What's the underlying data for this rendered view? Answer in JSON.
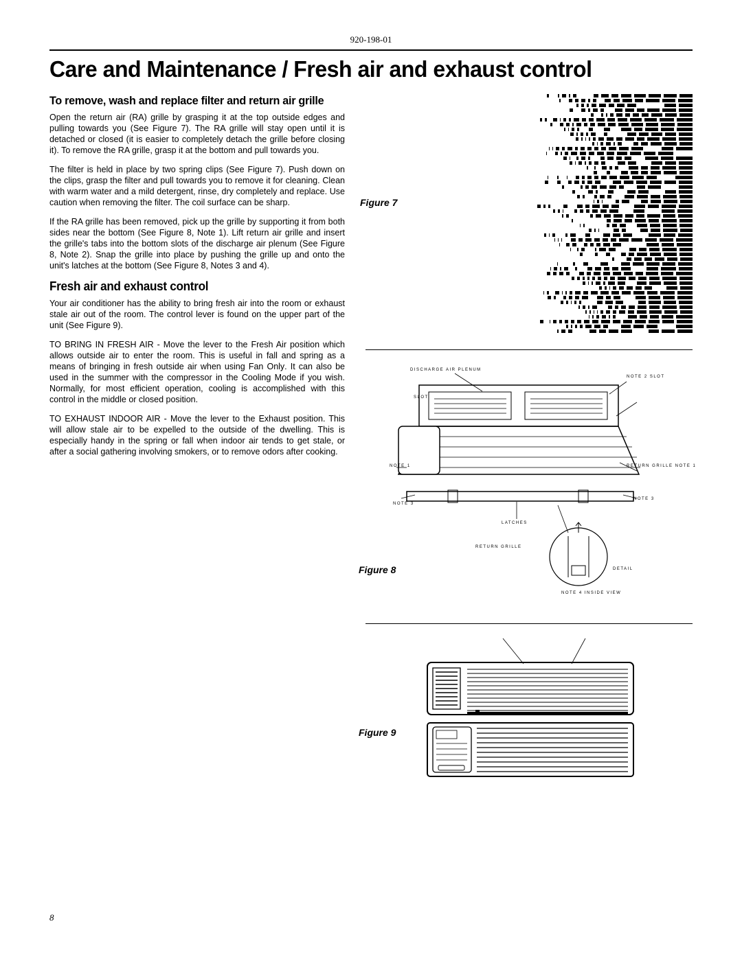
{
  "doc_number": "920-198-01",
  "main_title": "Care and Maintenance / Fresh air and exhaust control",
  "section1_title": "To remove, wash and replace filter and return air grille",
  "para1": "Open the return air (RA) grille by grasping it at the top outside edges and pulling towards you (See Figure 7). The RA grille will stay open until it is detached or closed (it is easier to completely detach the grille before closing it). To remove the RA grille, grasp it at the bottom and pull towards you.",
  "para2": "The filter is held in place by two spring clips (See Figure 7). Push down on the clips, grasp the filter and pull towards you to remove it for cleaning. Clean with warm water and a mild detergent, rinse, dry completely and replace. Use caution when removing the filter. The coil surface can be sharp.",
  "para3": "If the RA grille has been removed, pick up the grille by supporting it from both sides near the bottom (See Figure 8, Note 1). Lift return air grille and insert the grille's tabs into the bottom slots of the discharge air plenum (See Figure 8, Note 2). Snap the grille into place by pushing the grille up and onto the unit's latches at the bottom (See Figure 8, Notes 3 and 4).",
  "section2_title": "Fresh air and exhaust control",
  "para4": "Your air conditioner has the ability to bring fresh air into the room or exhaust stale air out of the room. The control lever is found on the upper part of the unit (See Figure 9).",
  "para5a": "TO BRING IN FRESH AIR - Move the lever to the ",
  "para5b": "Fresh Air",
  "para5c": " position which allows outside air to enter the room. This is useful in fall and spring as a means of bringing in fresh outside air when using ",
  "para5d": "Fan Only",
  "para5e": ". It can also be used in the summer with the compressor in the Cooling Mode if you wish. Normally, for most efficient operation, cooling is accomplished with this control in the middle or closed position.",
  "para6a": "TO EXHAUST INDOOR AIR - Move the lever to the ",
  "para6b": "Exhaust",
  "para6c": " position. This will allow stale air to be expelled to the outside of the dwelling. This is especially handy in the spring or fall when indoor air tends to get stale, or after a social gathering involving smokers, or to remove odors after cooking.",
  "fig7_label": "Figure 7",
  "fig8_label": "Figure 8",
  "fig9_label": "Figure 9",
  "page_num": "8",
  "fig8_labels": {
    "l1": "DISCHARGE AIR PLENUM",
    "l2": "NOTE 2\nSLOT",
    "l3": "SLOT",
    "l4": "NOTE 1",
    "l5": "RETURN GRILLE\nNOTE 1",
    "l6": "NOTE 3",
    "l7": "NOTE 3",
    "l8": "LATCHES",
    "l9": "RETURN GRILLE",
    "l10": "NOTE 4\nINSIDE VIEW",
    "l11": "DETAIL"
  },
  "colors": {
    "text": "#000000",
    "bg": "#ffffff",
    "rule": "#000000"
  }
}
